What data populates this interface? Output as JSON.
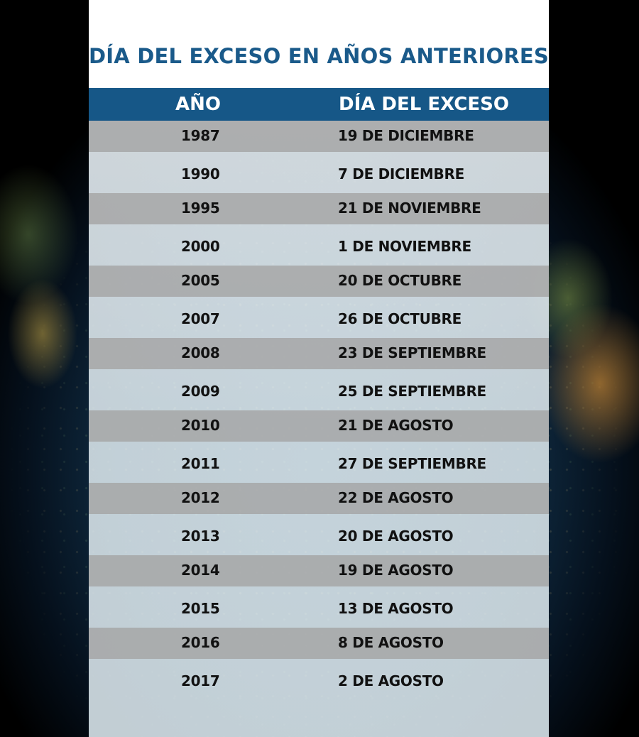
{
  "title": "DÍA DEL EXCESO EN AÑOS ANTERIORES",
  "headers": {
    "year": "AÑO",
    "day": "DÍA DEL EXCESO"
  },
  "rows": [
    {
      "year": "1987",
      "day": "19 DE DICIEMBRE"
    },
    {
      "year": "1990",
      "day": "7 DE DICIEMBRE"
    },
    {
      "year": "1995",
      "day": "21 DE NOVIEMBRE"
    },
    {
      "year": "2000",
      "day": "1 DE NOVIEMBRE"
    },
    {
      "year": "2005",
      "day": "20 DE OCTUBRE"
    },
    {
      "year": "2007",
      "day": "26 DE OCTUBRE"
    },
    {
      "year": "2008",
      "day": "23 DE SEPTIEMBRE"
    },
    {
      "year": "2009",
      "day": "25 DE SEPTIEMBRE"
    },
    {
      "year": "2010",
      "day": "21 DE AGOSTO"
    },
    {
      "year": "2011",
      "day": "27 DE SEPTIEMBRE"
    },
    {
      "year": "2012",
      "day": "22 DE AGOSTO"
    },
    {
      "year": "2013",
      "day": "20 DE AGOSTO"
    },
    {
      "year": "2014",
      "day": "19 DE AGOSTO"
    },
    {
      "year": "2015",
      "day": "13 DE AGOSTO"
    },
    {
      "year": "2016",
      "day": "8 DE AGOSTO"
    },
    {
      "year": "2017",
      "day": "2 DE AGOSTO"
    }
  ],
  "colors": {
    "title": "#1a5a8a",
    "header_bg": "#165787",
    "stripe": "#a5a5a5"
  }
}
